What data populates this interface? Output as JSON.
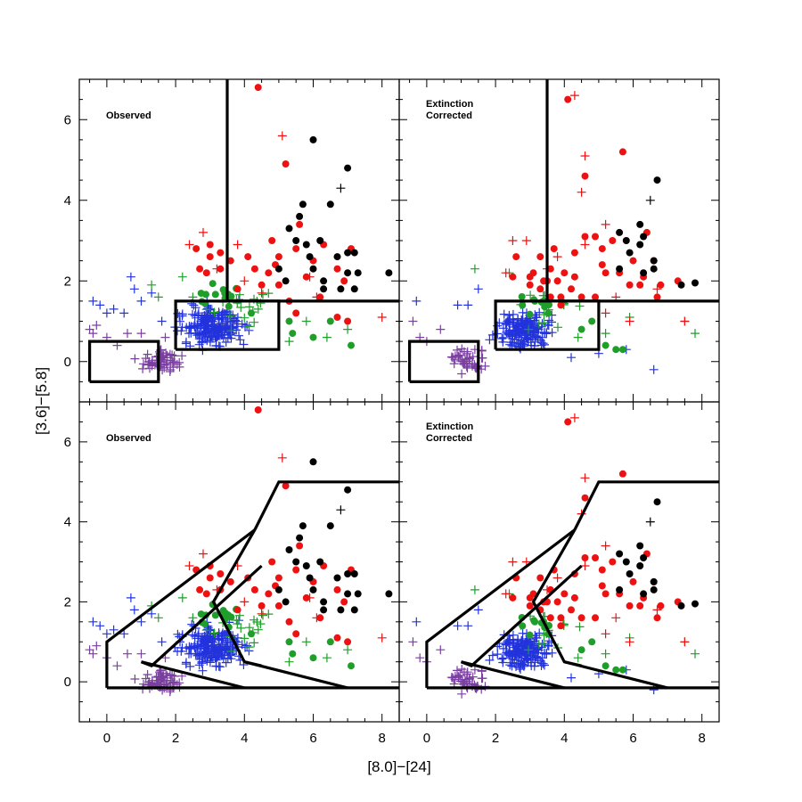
{
  "chart_data": {
    "type": "scatter",
    "xlabel": "[8.0]−[24]",
    "ylabel": "[3.6]−[5.8]",
    "xlim": [
      -0.8,
      8.5
    ],
    "ylim": [
      -1.0,
      7.0
    ],
    "xticks": [
      0,
      2,
      4,
      6,
      8
    ],
    "yticks": [
      0,
      2,
      4,
      6
    ],
    "colors": {
      "purple": "#7a3fa0",
      "blue": "#2233dd",
      "green": "#1f9e2a",
      "red": "#ee1111",
      "black": "#000000"
    },
    "panels": [
      {
        "label": "Observed",
        "regions": "rect",
        "points": "observed"
      },
      {
        "label": "Extinction Corrected",
        "regions": "rect",
        "points": "corrected"
      },
      {
        "label": "Observed",
        "regions": "poly",
        "points": "observed"
      },
      {
        "label": "Extinction Corrected",
        "regions": "poly",
        "points": "corrected"
      }
    ],
    "region_boxes": {
      "rect": [
        [
          [
            -0.5,
            -0.5
          ],
          [
            1.5,
            -0.5
          ],
          [
            1.5,
            0.5
          ],
          [
            -0.5,
            0.5
          ],
          [
            -0.5,
            -0.5
          ]
        ],
        [
          [
            2.0,
            0.3
          ],
          [
            5.0,
            0.3
          ],
          [
            5.0,
            1.5
          ],
          [
            2.0,
            1.5
          ],
          [
            2.0,
            0.3
          ]
        ],
        [
          [
            3.5,
            7.0
          ],
          [
            3.5,
            1.5
          ],
          [
            8.5,
            1.5
          ]
        ]
      ],
      "poly": [
        [
          [
            0,
            -0.15
          ],
          [
            8.5,
            -0.15
          ]
        ],
        [
          [
            0,
            -0.15
          ],
          [
            0,
            1.0
          ],
          [
            4.3,
            3.8
          ]
        ],
        [
          [
            1.0,
            0.5
          ],
          [
            4.0,
            -0.15
          ]
        ],
        [
          [
            1.0,
            0.5
          ],
          [
            1.3,
            0.4
          ],
          [
            4.5,
            2.9
          ]
        ],
        [
          [
            4.3,
            3.8
          ],
          [
            3.1,
            2.0
          ],
          [
            4.0,
            0.5
          ],
          [
            7.0,
            -0.15
          ]
        ],
        [
          [
            4.0,
            0.5
          ],
          [
            4.5,
            0.4
          ]
        ],
        [
          [
            4.3,
            3.8
          ],
          [
            5.0,
            5.0
          ],
          [
            8.5,
            5.0
          ]
        ]
      ]
    },
    "series": {
      "observed": [
        {
          "name": "purple",
          "marker": "cross",
          "seed": 11,
          "n": 60,
          "x": [
            0.8,
            2.4
          ],
          "y": [
            -0.4,
            0.4
          ],
          "extra": [
            [
              -0.4,
              0.7
            ],
            [
              -0.3,
              0.9
            ],
            [
              0.0,
              0.6
            ],
            [
              0.6,
              0.7
            ],
            [
              1.0,
              0.7
            ],
            [
              -0.5,
              0.8
            ],
            [
              0.3,
              0.4
            ],
            [
              1.7,
              0.6
            ]
          ]
        },
        {
          "name": "blue",
          "marker": "cross",
          "seed": 23,
          "n": 220,
          "x": [
            1.8,
            4.3
          ],
          "y": [
            0.1,
            1.7
          ],
          "extra": [
            [
              -0.4,
              1.5
            ],
            [
              0.0,
              1.2
            ],
            [
              0.7,
              2.1
            ],
            [
              0.5,
              1.2
            ],
            [
              0.2,
              1.3
            ],
            [
              1.0,
              1.5
            ],
            [
              1.3,
              1.7
            ],
            [
              1.6,
              1.0
            ],
            [
              -0.2,
              1.4
            ],
            [
              0.8,
              1.8
            ]
          ]
        },
        {
          "name": "green",
          "marker": "cross",
          "seed": 31,
          "n": 20,
          "x": [
            2.2,
            5.5
          ],
          "y": [
            0.6,
            2.2
          ],
          "extra": [
            [
              1.3,
              1.9
            ],
            [
              2.2,
              2.1
            ],
            [
              5.3,
              0.5
            ],
            [
              6.4,
              0.6
            ],
            [
              7.0,
              0.8
            ],
            [
              2.5,
              1.6
            ],
            [
              1.5,
              1.6
            ],
            [
              5.8,
              1.0
            ]
          ]
        },
        {
          "name": "green",
          "marker": "dot",
          "seed": 37,
          "n": 14,
          "x": [
            2.2,
            4.5
          ],
          "y": [
            1.3,
            2.0
          ],
          "extra": [
            [
              5.3,
              1.0
            ],
            [
              6.0,
              0.6
            ],
            [
              7.1,
              0.4
            ],
            [
              6.5,
              1.0
            ],
            [
              4.2,
              1.2
            ],
            [
              5.4,
              0.7
            ]
          ]
        },
        {
          "name": "red",
          "marker": "dot",
          "pts": [
            [
              4.4,
              6.8
            ],
            [
              5.2,
              4.9
            ],
            [
              4.8,
              3.0
            ],
            [
              5.5,
              2.8
            ],
            [
              5.6,
              3.4
            ],
            [
              4.3,
              2.3
            ],
            [
              4.7,
              2.2
            ],
            [
              5.0,
              2.6
            ],
            [
              6.0,
              2.5
            ],
            [
              6.3,
              2.9
            ],
            [
              6.7,
              2.3
            ],
            [
              6.9,
              2.0
            ],
            [
              7.1,
              2.8
            ],
            [
              2.6,
              2.8
            ],
            [
              3.0,
              2.9
            ],
            [
              3.3,
              2.7
            ],
            [
              2.9,
              2.2
            ],
            [
              4.1,
              2.6
            ],
            [
              5.3,
              1.5
            ],
            [
              6.7,
              1.1
            ],
            [
              7.0,
              1.0
            ],
            [
              3.0,
              2.6
            ],
            [
              3.6,
              2.5
            ],
            [
              4.5,
              1.9
            ],
            [
              5.0,
              1.9
            ],
            [
              3.8,
              1.8
            ],
            [
              6.2,
              1.6
            ],
            [
              5.8,
              2.1
            ],
            [
              3.3,
              2.3
            ],
            [
              2.7,
              2.3
            ],
            [
              4.9,
              2.4
            ],
            [
              5.5,
              1.2
            ]
          ]
        },
        {
          "name": "red",
          "marker": "cross",
          "pts": [
            [
              5.1,
              5.6
            ],
            [
              2.4,
              2.9
            ],
            [
              3.2,
              2.3
            ],
            [
              3.8,
              2.9
            ],
            [
              4.0,
              2.0
            ],
            [
              4.5,
              1.7
            ],
            [
              5.9,
              2.1
            ],
            [
              8.0,
              1.1
            ],
            [
              6.1,
              1.6
            ],
            [
              2.8,
              3.2
            ]
          ]
        },
        {
          "name": "black",
          "marker": "dot",
          "pts": [
            [
              6.0,
              5.5
            ],
            [
              7.0,
              4.8
            ],
            [
              5.7,
              3.9
            ],
            [
              5.6,
              3.6
            ],
            [
              6.5,
              3.9
            ],
            [
              5.3,
              3.3
            ],
            [
              5.5,
              3.0
            ],
            [
              5.8,
              2.9
            ],
            [
              6.2,
              3.0
            ],
            [
              5.0,
              2.3
            ],
            [
              6.0,
              2.3
            ],
            [
              6.3,
              2.0
            ],
            [
              7.0,
              2.7
            ],
            [
              7.2,
              2.7
            ],
            [
              7.0,
              2.2
            ],
            [
              7.3,
              2.2
            ],
            [
              8.2,
              2.2
            ],
            [
              5.9,
              2.6
            ],
            [
              6.3,
              1.8
            ],
            [
              7.2,
              1.8
            ],
            [
              6.7,
              2.6
            ],
            [
              6.8,
              1.8
            ],
            [
              5.2,
              2.0
            ]
          ]
        },
        {
          "name": "black",
          "marker": "cross",
          "pts": [
            [
              6.8,
              4.3
            ]
          ]
        }
      ],
      "corrected": [
        {
          "name": "purple",
          "marker": "cross",
          "seed": 13,
          "n": 45,
          "x": [
            0.5,
            1.9
          ],
          "y": [
            -0.4,
            0.45
          ],
          "extra": [
            [
              -0.4,
              1.0
            ],
            [
              0.0,
              0.5
            ],
            [
              0.4,
              0.8
            ],
            [
              -0.2,
              0.6
            ],
            [
              1.4,
              0.3
            ]
          ]
        },
        {
          "name": "blue",
          "marker": "cross",
          "seed": 29,
          "n": 180,
          "x": [
            1.6,
            4.0
          ],
          "y": [
            0.2,
            1.4
          ],
          "extra": [
            [
              -0.3,
              1.5
            ],
            [
              1.2,
              1.4
            ],
            [
              1.5,
              1.8
            ],
            [
              4.2,
              0.1
            ],
            [
              5.0,
              0.2
            ],
            [
              5.8,
              0.3
            ],
            [
              6.6,
              -0.2
            ],
            [
              0.9,
              1.4
            ]
          ]
        },
        {
          "name": "green",
          "marker": "cross",
          "seed": 41,
          "n": 15,
          "x": [
            2.1,
            5.0
          ],
          "y": [
            0.4,
            2.0
          ],
          "extra": [
            [
              1.4,
              2.3
            ],
            [
              2.4,
              2.2
            ],
            [
              5.2,
              0.7
            ],
            [
              5.9,
              1.1
            ],
            [
              7.5,
              1.0
            ],
            [
              7.8,
              0.7
            ],
            [
              4.4,
              0.6
            ]
          ]
        },
        {
          "name": "green",
          "marker": "dot",
          "seed": 43,
          "n": 10,
          "x": [
            2.4,
            4.2
          ],
          "y": [
            1.1,
            1.8
          ],
          "extra": [
            [
              4.5,
              0.8
            ],
            [
              5.5,
              0.3
            ],
            [
              5.7,
              0.3
            ],
            [
              4.8,
              1.0
            ],
            [
              5.2,
              0.4
            ]
          ]
        },
        {
          "name": "red",
          "marker": "dot",
          "pts": [
            [
              4.1,
              6.5
            ],
            [
              5.7,
              5.2
            ],
            [
              4.6,
              4.6
            ],
            [
              4.6,
              3.1
            ],
            [
              4.9,
              3.1
            ],
            [
              5.1,
              2.8
            ],
            [
              5.4,
              3.0
            ],
            [
              5.1,
              2.4
            ],
            [
              5.2,
              2.2
            ],
            [
              5.6,
              2.2
            ],
            [
              6.3,
              2.1
            ],
            [
              6.6,
              2.5
            ],
            [
              6.8,
              1.9
            ],
            [
              7.3,
              2.0
            ],
            [
              5.9,
              1.9
            ],
            [
              6.2,
              1.9
            ],
            [
              6.7,
              1.6
            ],
            [
              2.6,
              2.6
            ],
            [
              3.3,
              2.6
            ],
            [
              3.6,
              2.3
            ],
            [
              3.0,
              2.1
            ],
            [
              3.4,
              2.0
            ],
            [
              4.0,
              2.2
            ],
            [
              4.3,
              2.1
            ],
            [
              3.8,
              2.0
            ],
            [
              4.5,
              1.6
            ],
            [
              3.9,
              1.6
            ],
            [
              3.0,
              1.9
            ],
            [
              4.3,
              2.7
            ],
            [
              3.7,
              2.8
            ],
            [
              3.5,
              2.0
            ],
            [
              2.5,
              2.1
            ],
            [
              3.1,
              2.2
            ],
            [
              3.3,
              1.8
            ],
            [
              3.6,
              1.6
            ],
            [
              4.2,
              1.8
            ],
            [
              4.9,
              1.6
            ],
            [
              6.4,
              3.2
            ],
            [
              6.0,
              2.5
            ],
            [
              3.9,
              1.4
            ]
          ]
        },
        {
          "name": "red",
          "marker": "cross",
          "pts": [
            [
              4.3,
              6.6
            ],
            [
              4.6,
              5.1
            ],
            [
              4.5,
              4.2
            ],
            [
              5.2,
              3.4
            ],
            [
              2.5,
              3.0
            ],
            [
              2.9,
              3.0
            ],
            [
              2.3,
              2.2
            ],
            [
              3.5,
              2.3
            ],
            [
              3.8,
              2.6
            ],
            [
              4.6,
              2.9
            ],
            [
              5.5,
              1.6
            ],
            [
              5.9,
              1.0
            ],
            [
              6.7,
              1.8
            ],
            [
              7.5,
              1.0
            ],
            [
              5.2,
              1.2
            ]
          ]
        },
        {
          "name": "black",
          "marker": "dot",
          "pts": [
            [
              6.7,
              4.5
            ],
            [
              6.2,
              3.4
            ],
            [
              6.3,
              3.1
            ],
            [
              5.8,
              3.0
            ],
            [
              5.6,
              3.2
            ],
            [
              5.9,
              2.7
            ],
            [
              6.6,
              2.5
            ],
            [
              6.3,
              2.2
            ],
            [
              6.6,
              2.3
            ],
            [
              5.6,
              2.3
            ],
            [
              7.4,
              1.9
            ],
            [
              7.8,
              1.95
            ],
            [
              6.2,
              2.9
            ]
          ]
        },
        {
          "name": "black",
          "marker": "cross",
          "pts": [
            [
              6.5,
              4.0
            ]
          ]
        }
      ]
    }
  }
}
